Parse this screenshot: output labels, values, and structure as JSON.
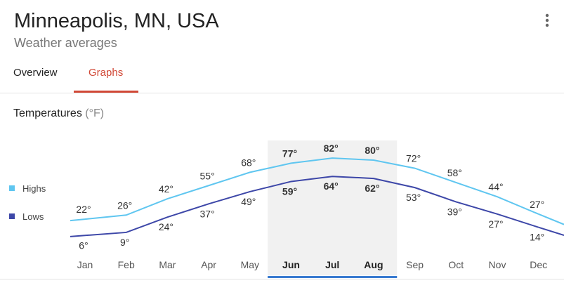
{
  "header": {
    "title": "Minneapolis, MN, USA",
    "subtitle": "Weather averages"
  },
  "tabs": {
    "items": [
      "Overview",
      "Graphs"
    ],
    "active": 1
  },
  "section": {
    "title": "Temperatures",
    "unit": "(°F)"
  },
  "chart_data": {
    "type": "line",
    "categories": [
      "Jan",
      "Feb",
      "Mar",
      "Apr",
      "May",
      "Jun",
      "Jul",
      "Aug",
      "Sep",
      "Oct",
      "Nov",
      "Dec"
    ],
    "highlighted": [
      5,
      6,
      7
    ],
    "series": [
      {
        "name": "Highs",
        "color": "#5fc6f0",
        "values": [
          22,
          26,
          42,
          55,
          68,
          77,
          82,
          80,
          72,
          58,
          44,
          27
        ],
        "value_labels": [
          "22°",
          "26°",
          "42°",
          "55°",
          "68°",
          "77°",
          "82°",
          "80°",
          "72°",
          "58°",
          "44°",
          "27°"
        ]
      },
      {
        "name": "Lows",
        "color": "#3d47a8",
        "values": [
          6,
          9,
          24,
          37,
          49,
          59,
          64,
          62,
          53,
          39,
          27,
          14
        ],
        "value_labels": [
          "6°",
          "9°",
          "24°",
          "37°",
          "49°",
          "59°",
          "64°",
          "62°",
          "53°",
          "39°",
          "27°",
          "14°"
        ]
      }
    ]
  }
}
